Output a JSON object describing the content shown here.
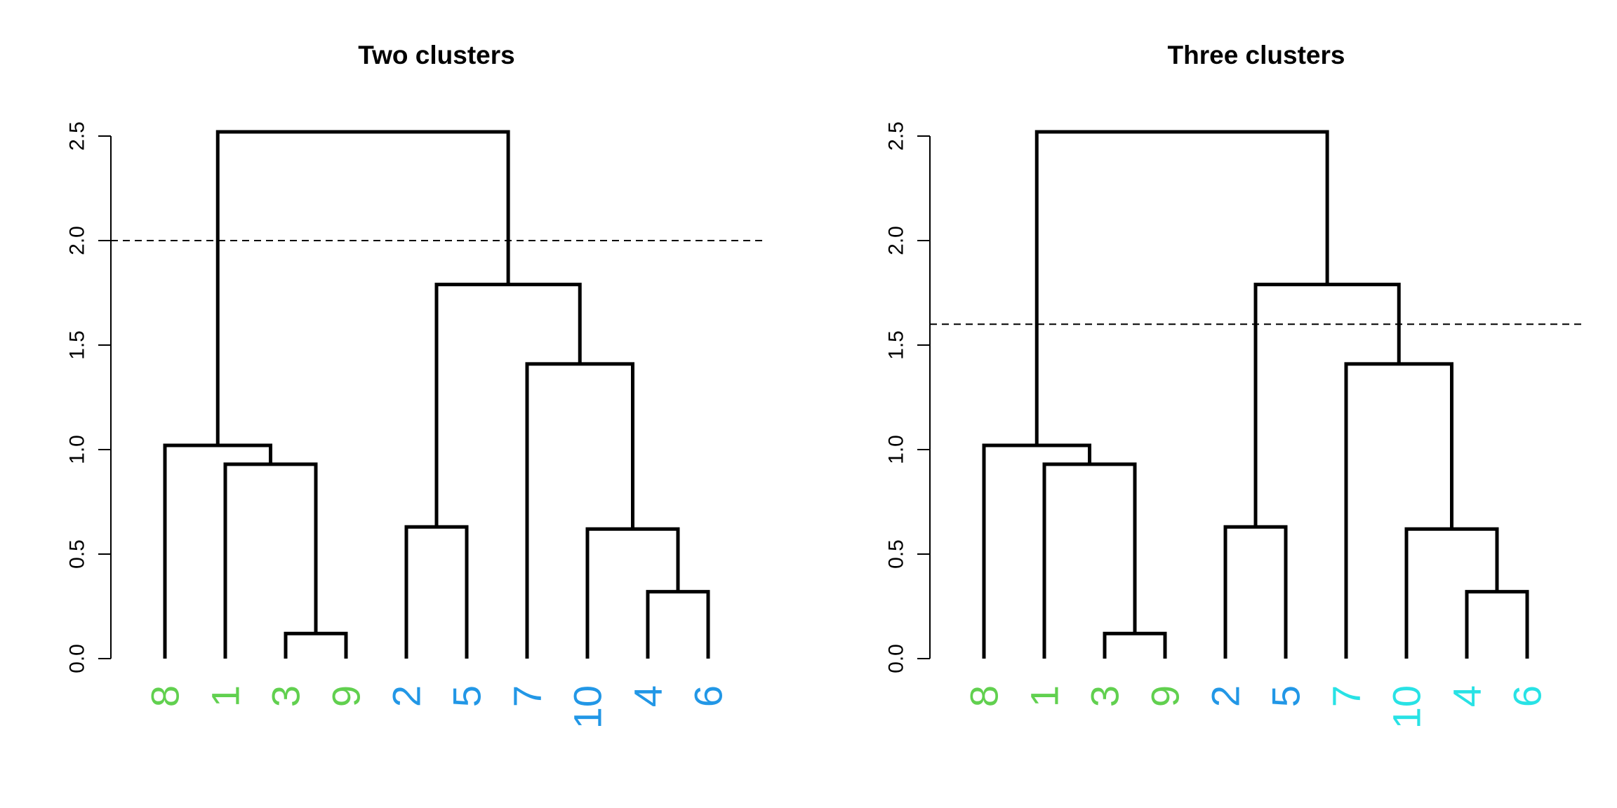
{
  "chart_data": [
    {
      "type": "dendrogram",
      "title": "Two clusters",
      "ylim": [
        0,
        2.5
      ],
      "yticks": [
        "0.0",
        "0.5",
        "1.0",
        "1.5",
        "2.0",
        "2.5"
      ],
      "cut_height": 2.0,
      "leaves": [
        {
          "label": "8",
          "color": "#61D04F"
        },
        {
          "label": "1",
          "color": "#61D04F"
        },
        {
          "label": "3",
          "color": "#61D04F"
        },
        {
          "label": "9",
          "color": "#61D04F"
        },
        {
          "label": "2",
          "color": "#2297E6"
        },
        {
          "label": "5",
          "color": "#2297E6"
        },
        {
          "label": "7",
          "color": "#2297E6"
        },
        {
          "label": "10",
          "color": "#2297E6"
        },
        {
          "label": "4",
          "color": "#2297E6"
        },
        {
          "label": "6",
          "color": "#2297E6"
        }
      ],
      "merges": [
        {
          "left": "3",
          "right": "9",
          "height": 0.12
        },
        {
          "left": "4",
          "right": "6",
          "height": 0.32
        },
        {
          "left": "10",
          "right": "m2",
          "height": 0.62
        },
        {
          "left": "2",
          "right": "5",
          "height": 0.63
        },
        {
          "left": "1",
          "right": "m1",
          "height": 0.93
        },
        {
          "left": "8",
          "right": "m5",
          "height": 1.02
        },
        {
          "left": "7",
          "right": "m3",
          "height": 1.41
        },
        {
          "left": "m4",
          "right": "m7",
          "height": 1.79
        },
        {
          "left": "m6",
          "right": "m8",
          "height": 2.52
        }
      ]
    },
    {
      "type": "dendrogram",
      "title": "Three clusters",
      "ylim": [
        0,
        2.5
      ],
      "yticks": [
        "0.0",
        "0.5",
        "1.0",
        "1.5",
        "2.0",
        "2.5"
      ],
      "cut_height": 1.6,
      "leaves": [
        {
          "label": "8",
          "color": "#61D04F"
        },
        {
          "label": "1",
          "color": "#61D04F"
        },
        {
          "label": "3",
          "color": "#61D04F"
        },
        {
          "label": "9",
          "color": "#61D04F"
        },
        {
          "label": "2",
          "color": "#2297E6"
        },
        {
          "label": "5",
          "color": "#2297E6"
        },
        {
          "label": "7",
          "color": "#28E2E5"
        },
        {
          "label": "10",
          "color": "#28E2E5"
        },
        {
          "label": "4",
          "color": "#28E2E5"
        },
        {
          "label": "6",
          "color": "#28E2E5"
        }
      ],
      "merges": [
        {
          "left": "3",
          "right": "9",
          "height": 0.12
        },
        {
          "left": "4",
          "right": "6",
          "height": 0.32
        },
        {
          "left": "10",
          "right": "m2",
          "height": 0.62
        },
        {
          "left": "2",
          "right": "5",
          "height": 0.63
        },
        {
          "left": "1",
          "right": "m1",
          "height": 0.93
        },
        {
          "left": "8",
          "right": "m5",
          "height": 1.02
        },
        {
          "left": "7",
          "right": "m3",
          "height": 1.41
        },
        {
          "left": "m4",
          "right": "m7",
          "height": 1.79
        },
        {
          "left": "m6",
          "right": "m8",
          "height": 2.52
        }
      ]
    }
  ]
}
